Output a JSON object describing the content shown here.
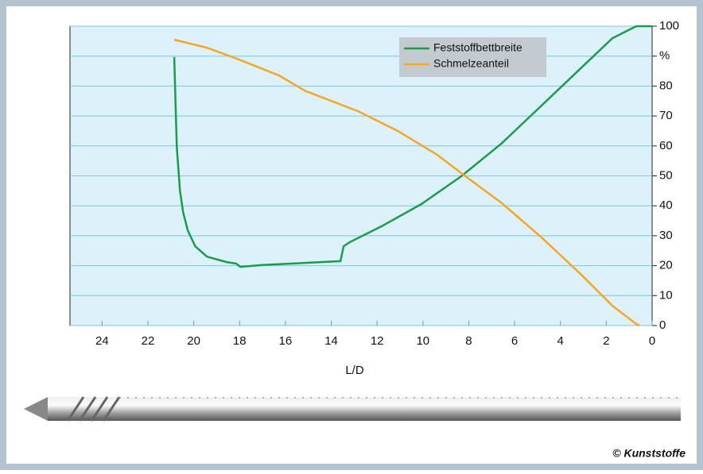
{
  "chart_data": {
    "type": "line",
    "xlabel": "L/D",
    "xlim": [
      25.4,
      0
    ],
    "xticks": [
      24,
      22,
      20,
      18,
      16,
      14,
      12,
      10,
      8,
      6,
      4,
      2,
      0
    ],
    "ylim": [
      0,
      100
    ],
    "yticks": [
      0,
      10,
      20,
      30,
      40,
      50,
      60,
      70,
      80,
      {
        "value": 90,
        "label": "%"
      },
      100
    ],
    "grid": true,
    "legend": "top-right",
    "series": [
      {
        "name": "Feststoffbettbreite",
        "color": "#1a9c4a",
        "x": [
          20.85,
          20.74,
          20.6,
          20.46,
          20.26,
          19.94,
          19.42,
          18.56,
          18.14,
          17.97,
          17,
          13.6,
          13.46,
          13.18,
          11.79,
          10.06,
          8.32,
          6.59,
          4.86,
          3.12,
          1.73,
          0.69,
          0
        ],
        "values": [
          89.7,
          59.7,
          45,
          37.7,
          31.8,
          26.5,
          23,
          21.2,
          20.7,
          19.6,
          20.2,
          21.5,
          26.5,
          27.9,
          33.2,
          40.6,
          49.9,
          60.7,
          73.2,
          85.9,
          96,
          100,
          100
        ]
      },
      {
        "name": "Schmelzeanteil",
        "color": "#f5a623",
        "x": [
          20.85,
          19.42,
          18.04,
          16.3,
          15.09,
          14.9,
          12.83,
          11.1,
          9.37,
          8.15,
          6.59,
          4.86,
          3.12,
          1.73,
          0.69,
          0.55
        ],
        "values": [
          95.5,
          92.8,
          88.9,
          83.6,
          78.2,
          77.7,
          71.6,
          65,
          57,
          49.9,
          41.1,
          29.7,
          17.2,
          6.6,
          0.5,
          0
        ]
      }
    ],
    "copyright": "© Kunststoffe"
  }
}
